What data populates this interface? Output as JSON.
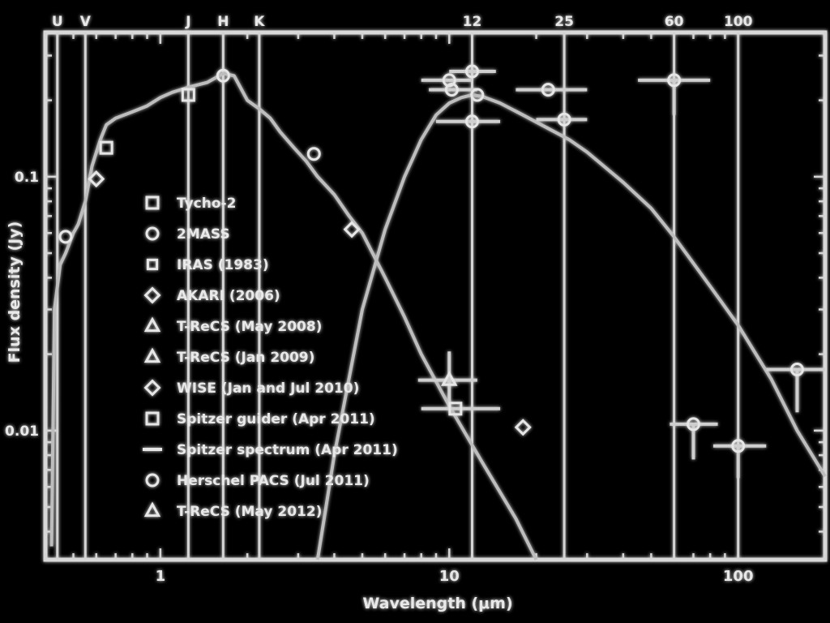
{
  "chart_data": {
    "type": "scatter",
    "xscale": "log",
    "yscale": "log",
    "xlim": [
      0.4,
      200
    ],
    "ylim": [
      0.0031,
      0.37
    ],
    "xlabel": "Wavelength (μm)",
    "ylabel": "Flux density (Jy)",
    "x_ticks": [
      {
        "value": 1,
        "label": "1"
      },
      {
        "value": 10,
        "label": "10"
      },
      {
        "value": 100,
        "label": "100"
      }
    ],
    "y_ticks": [
      {
        "value": 0.1,
        "label": "0.1"
      },
      {
        "value": 0.01,
        "label": "0.01"
      }
    ],
    "band_lines": [
      {
        "label": "U",
        "x": 0.44
      },
      {
        "label": "V",
        "x": 0.55
      },
      {
        "label": "J",
        "x": 1.25
      },
      {
        "label": "H",
        "x": 1.65
      },
      {
        "label": "K",
        "x": 2.2
      },
      {
        "label": "12",
        "x": 12
      },
      {
        "label": "25",
        "x": 25
      },
      {
        "label": "60",
        "x": 60
      },
      {
        "label": "100",
        "x": 100
      }
    ],
    "legend": {
      "placement": "center-left",
      "entries": [
        {
          "label": "Tycho-2",
          "marker": "square"
        },
        {
          "label": "2MASS",
          "marker": "circle"
        },
        {
          "label": "IRAS (1983)",
          "marker": "square-small"
        },
        {
          "label": "AKARI (2006)",
          "marker": "diamond"
        },
        {
          "label": "T-ReCS (May 2008)",
          "marker": "triangle"
        },
        {
          "label": "T-ReCS (Jan 2009)",
          "marker": "triangle"
        },
        {
          "label": "WISE (Jan and Jul 2010)",
          "marker": "diamond"
        },
        {
          "label": "Spitzer guider (Apr 2011)",
          "marker": "square"
        },
        {
          "label": "Spitzer spectrum (Apr 2011)",
          "marker": "line"
        },
        {
          "label": "Herschel PACS (Jul 2011)",
          "marker": "circle"
        },
        {
          "label": "T-ReCS (May 2012)",
          "marker": "triangle"
        }
      ]
    },
    "series": [
      {
        "kind": "curve",
        "points": [
          [
            0.42,
            0.0035
          ],
          [
            0.43,
            0.03
          ],
          [
            0.45,
            0.045
          ],
          [
            0.47,
            0.05
          ],
          [
            0.5,
            0.06
          ],
          [
            0.52,
            0.065
          ],
          [
            0.55,
            0.08
          ],
          [
            0.58,
            0.11
          ],
          [
            0.62,
            0.14
          ],
          [
            0.65,
            0.16
          ],
          [
            0.7,
            0.17
          ],
          [
            0.8,
            0.18
          ],
          [
            0.9,
            0.19
          ],
          [
            1.0,
            0.205
          ],
          [
            1.1,
            0.215
          ],
          [
            1.25,
            0.225
          ],
          [
            1.45,
            0.235
          ],
          [
            1.65,
            0.255
          ],
          [
            1.8,
            0.25
          ],
          [
            2.0,
            0.2
          ],
          [
            2.2,
            0.185
          ],
          [
            2.4,
            0.17
          ],
          [
            2.6,
            0.15
          ],
          [
            2.9,
            0.13
          ],
          [
            3.2,
            0.115
          ],
          [
            3.5,
            0.1
          ],
          [
            4.0,
            0.085
          ],
          [
            4.5,
            0.07
          ],
          [
            5.0,
            0.06
          ],
          [
            6.0,
            0.04
          ],
          [
            7.0,
            0.028
          ],
          [
            8.0,
            0.02
          ],
          [
            10.0,
            0.0125
          ],
          [
            13.0,
            0.0075
          ],
          [
            17.0,
            0.0045
          ],
          [
            20.0,
            0.0031
          ]
        ]
      },
      {
        "kind": "curve",
        "points": [
          [
            3.5,
            0.0031
          ],
          [
            4.0,
            0.008
          ],
          [
            5.0,
            0.03
          ],
          [
            6.0,
            0.062
          ],
          [
            7.0,
            0.1
          ],
          [
            8.0,
            0.14
          ],
          [
            9.0,
            0.175
          ],
          [
            10.0,
            0.195
          ],
          [
            11.0,
            0.205
          ],
          [
            12.0,
            0.21
          ],
          [
            13.0,
            0.207
          ],
          [
            15.0,
            0.195
          ],
          [
            18.0,
            0.175
          ],
          [
            22.0,
            0.155
          ],
          [
            26.0,
            0.14
          ],
          [
            30.0,
            0.125
          ],
          [
            40.0,
            0.095
          ],
          [
            50.0,
            0.075
          ],
          [
            60.0,
            0.058
          ],
          [
            80.0,
            0.037
          ],
          [
            100.0,
            0.026
          ],
          [
            130.0,
            0.016
          ],
          [
            160.0,
            0.01
          ],
          [
            200.0,
            0.0066
          ]
        ]
      },
      {
        "kind": "points",
        "points": [
          {
            "x": 0.47,
            "y": 0.058,
            "marker": "circle"
          },
          {
            "x": 0.6,
            "y": 0.098,
            "marker": "diamond"
          },
          {
            "x": 0.65,
            "y": 0.13,
            "marker": "square"
          },
          {
            "x": 1.25,
            "y": 0.21,
            "marker": "square"
          },
          {
            "x": 1.65,
            "y": 0.25,
            "marker": "circle"
          },
          {
            "x": 3.4,
            "y": 0.123,
            "marker": "circle"
          },
          {
            "x": 4.6,
            "y": 0.062,
            "marker": "diamond"
          },
          {
            "x": 12.0,
            "y": 0.26,
            "marker": "circle",
            "xerr": [
              10.0,
              14.5
            ]
          },
          {
            "x": 10.0,
            "y": 0.24,
            "marker": "circle",
            "xerr": [
              8.0,
              12.0
            ]
          },
          {
            "x": 10.2,
            "y": 0.22,
            "marker": "circle",
            "xerr": [
              8.5,
              12.5
            ]
          },
          {
            "x": 12.5,
            "y": 0.21,
            "marker": "circle"
          },
          {
            "x": 12.0,
            "y": 0.165,
            "marker": "circle",
            "xerr": [
              9.0,
              15.0
            ]
          },
          {
            "x": 22.0,
            "y": 0.22,
            "marker": "circle",
            "xerr": [
              17.0,
              30.0
            ]
          },
          {
            "x": 25.0,
            "y": 0.168,
            "marker": "circle",
            "xerr": [
              20.0,
              30.0
            ]
          },
          {
            "x": 10.0,
            "y": 0.0158,
            "marker": "triangle",
            "xerr": [
              7.8,
              12.5
            ],
            "yerr": [
              0.0122,
              0.0205
            ]
          },
          {
            "x": 10.5,
            "y": 0.0122,
            "marker": "square",
            "xerr": [
              8.0,
              15.0
            ]
          },
          {
            "x": 18.0,
            "y": 0.0103,
            "marker": "diamond"
          },
          {
            "x": 60.0,
            "y": 0.24,
            "marker": "circle",
            "xerr": [
              45.0,
              80.0
            ],
            "yerr": [
              0.175,
              0.24
            ]
          },
          {
            "x": 70.0,
            "y": 0.0106,
            "marker": "circle",
            "xerr": [
              58.0,
              85.0
            ],
            "yerr": [
              0.0077,
              0.0106
            ]
          },
          {
            "x": 100.0,
            "y": 0.0087,
            "marker": "circle",
            "xerr": [
              82.0,
              125.0
            ],
            "yerr": [
              0.0065,
              0.0087
            ]
          },
          {
            "x": 160.0,
            "y": 0.0174,
            "marker": "circle",
            "xerr": [
              125.0,
              200.0
            ],
            "yerr": [
              0.0118,
              0.0174
            ]
          }
        ]
      }
    ]
  }
}
